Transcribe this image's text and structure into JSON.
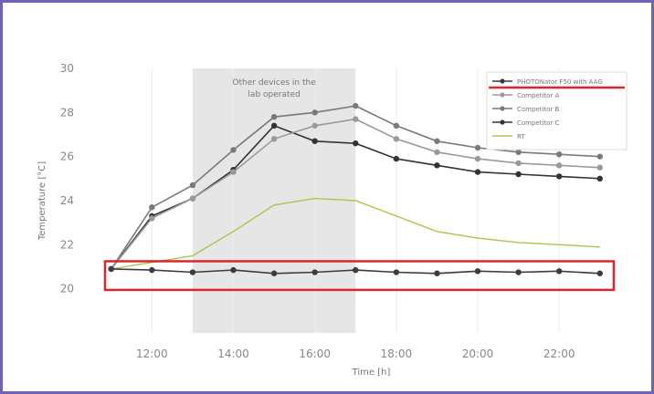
{
  "chart_data": {
    "type": "line",
    "xlabel": "Time [h]",
    "ylabel": "Temperature [°C]",
    "xlim": [
      10.4,
      23.7
    ],
    "ylim": [
      18,
      30
    ],
    "x_ticks": [
      "12:00",
      "14:00",
      "16:00",
      "18:00",
      "20:00",
      "22:00"
    ],
    "x_tick_values": [
      12,
      14,
      16,
      18,
      20,
      22
    ],
    "y_ticks": [
      "20",
      "22",
      "24",
      "26",
      "28",
      "30"
    ],
    "y_tick_values": [
      20,
      22,
      24,
      26,
      28,
      30
    ],
    "grid": "vertical",
    "legend_position": "top-right",
    "shaded_region": {
      "x": [
        13,
        17
      ],
      "label": "Other devices in the lab operated"
    },
    "highlight_box": {
      "y": [
        19.95,
        21.25
      ]
    },
    "series": [
      {
        "name": "PHOTONator F50 with AAG",
        "color": "#3a3a44",
        "marker": true,
        "x": [
          11,
          12,
          13,
          14,
          15,
          16,
          17,
          18,
          19,
          20,
          21,
          22,
          23
        ],
        "y": [
          20.9,
          20.85,
          20.75,
          20.85,
          20.7,
          20.75,
          20.85,
          20.75,
          20.7,
          20.8,
          20.75,
          20.8,
          20.7
        ]
      },
      {
        "name": "Competitor A",
        "color": "#9a9a9a",
        "marker": true,
        "x": [
          11,
          12,
          13,
          14,
          15,
          16,
          17,
          18,
          19,
          20,
          21,
          22,
          23
        ],
        "y": [
          20.9,
          23.2,
          24.1,
          25.3,
          26.8,
          27.4,
          27.7,
          26.8,
          26.2,
          25.9,
          25.7,
          25.6,
          25.5
        ]
      },
      {
        "name": "Competitor B",
        "color": "#7a7a7a",
        "marker": true,
        "x": [
          11,
          12,
          13,
          14,
          15,
          16,
          17,
          18,
          19,
          20,
          21,
          22,
          23
        ],
        "y": [
          20.9,
          23.7,
          24.7,
          26.3,
          27.8,
          28.0,
          28.3,
          27.4,
          26.7,
          26.4,
          26.2,
          26.1,
          26.0
        ]
      },
      {
        "name": "Competitor C",
        "color": "#333333",
        "marker": true,
        "x": [
          11,
          12,
          13,
          14,
          15,
          16,
          17,
          18,
          19,
          20,
          21,
          22,
          23
        ],
        "y": [
          20.9,
          23.3,
          24.1,
          25.4,
          27.4,
          26.7,
          26.6,
          25.9,
          25.6,
          25.3,
          25.2,
          25.1,
          25.0
        ]
      },
      {
        "name": "RT",
        "color": "#a8c84a",
        "marker": false,
        "x": [
          11,
          12,
          13,
          14,
          15,
          16,
          17,
          18,
          19,
          20,
          21,
          22,
          23
        ],
        "y": [
          20.9,
          21.2,
          21.5,
          22.6,
          23.8,
          24.1,
          24.0,
          23.3,
          22.6,
          22.3,
          22.1,
          22.0,
          21.9
        ]
      }
    ]
  }
}
